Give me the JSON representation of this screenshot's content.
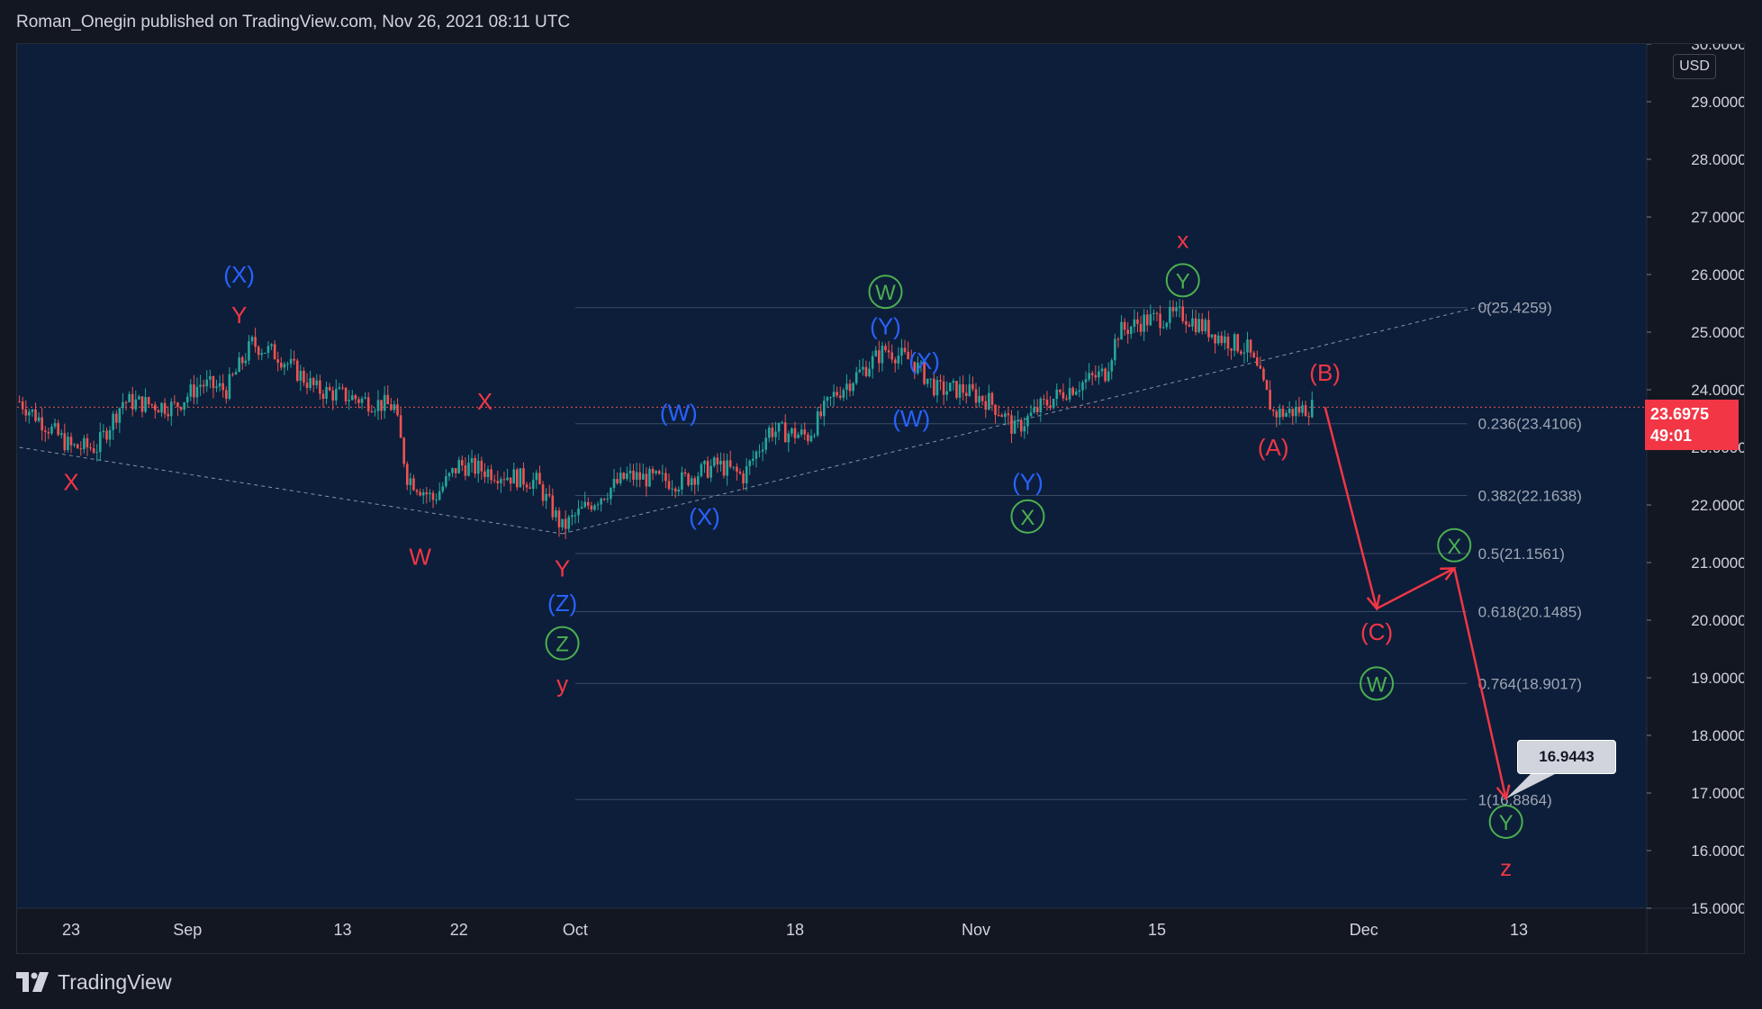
{
  "header": {
    "title": "Roman_Onegin published on TradingView.com, Nov 26, 2021 08:11 UTC"
  },
  "footer": {
    "brand": "TradingView"
  },
  "colors": {
    "background": "#131722",
    "plot_bg": "#0c1e3a",
    "up": "#26a69a",
    "down": "#ef5350",
    "red_label": "#f23645",
    "blue_label": "#2962ff",
    "green_label": "#4caf50",
    "arrow": "#f23645",
    "fib_line": "#3a4a63"
  },
  "chart_data": {
    "type": "candlestick",
    "currency": "USD",
    "last_price": "23.6975",
    "countdown": "49:01",
    "ylim": [
      15.0,
      30.0
    ],
    "y_ticks": [
      "15.0000",
      "16.0000",
      "17.0000",
      "18.0000",
      "19.0000",
      "20.0000",
      "21.0000",
      "22.0000",
      "23.0000",
      "24.0000",
      "25.0000",
      "26.0000",
      "27.0000",
      "28.0000",
      "29.0000",
      "30.0000"
    ],
    "x_ticks": [
      "23",
      "Sep",
      "13",
      "22",
      "Oct",
      "18",
      "Nov",
      "15",
      "Dec",
      "13"
    ],
    "callout_value": "16.9443",
    "fib_levels": [
      {
        "label": "0(25.4259)",
        "value": 25.4259
      },
      {
        "label": "0.236(23.4106)",
        "value": 23.4106
      },
      {
        "label": "0.382(22.1638)",
        "value": 22.1638
      },
      {
        "label": "0.5(21.1561)",
        "value": 21.1561
      },
      {
        "label": "0.618(20.1485)",
        "value": 20.1485
      },
      {
        "label": "0.764(18.9017)",
        "value": 18.9017
      },
      {
        "label": "1(16.8864)",
        "value": 16.8864
      }
    ],
    "path": [
      {
        "d": "Aug 19",
        "p": 23.8
      },
      {
        "d": "Aug 23",
        "p": 23.0
      },
      {
        "d": "Aug 25",
        "p": 23.0
      },
      {
        "d": "Aug 27",
        "p": 23.8
      },
      {
        "d": "Aug 31",
        "p": 23.7
      },
      {
        "d": "Sep 2",
        "p": 24.1
      },
      {
        "d": "Sep 4",
        "p": 24.0
      },
      {
        "d": "Sep 6",
        "p": 24.8
      },
      {
        "d": "Sep 8",
        "p": 24.6
      },
      {
        "d": "Sep 11",
        "p": 24.0
      },
      {
        "d": "Sep 15",
        "p": 23.8
      },
      {
        "d": "Sep 17",
        "p": 23.7
      },
      {
        "d": "Sep 18",
        "p": 22.5
      },
      {
        "d": "Sep 20",
        "p": 22.1
      },
      {
        "d": "Sep 22",
        "p": 22.7
      },
      {
        "d": "Sep 24",
        "p": 22.6
      },
      {
        "d": "Sep 28",
        "p": 22.4
      },
      {
        "d": "Sep 30",
        "p": 21.6
      },
      {
        "d": "Oct 2",
        "p": 22.0
      },
      {
        "d": "Oct 5",
        "p": 22.5
      },
      {
        "d": "Oct 9",
        "p": 22.4
      },
      {
        "d": "Oct 12",
        "p": 22.7
      },
      {
        "d": "Oct 14",
        "p": 22.5
      },
      {
        "d": "Oct 16",
        "p": 23.3
      },
      {
        "d": "Oct 19",
        "p": 23.2
      },
      {
        "d": "Oct 21",
        "p": 23.9
      },
      {
        "d": "Oct 24",
        "p": 24.5
      },
      {
        "d": "Oct 25",
        "p": 24.7
      },
      {
        "d": "Oct 27",
        "p": 24.5
      },
      {
        "d": "Oct 29",
        "p": 24.0
      },
      {
        "d": "Oct 31",
        "p": 24.0
      },
      {
        "d": "Nov 2",
        "p": 23.8
      },
      {
        "d": "Nov 3",
        "p": 23.6
      },
      {
        "d": "Nov 4",
        "p": 23.3
      },
      {
        "d": "Nov 6",
        "p": 23.7
      },
      {
        "d": "Nov 8",
        "p": 24.0
      },
      {
        "d": "Nov 11",
        "p": 24.3
      },
      {
        "d": "Nov 12",
        "p": 25.0
      },
      {
        "d": "Nov 14",
        "p": 25.2
      },
      {
        "d": "Nov 17",
        "p": 25.3
      },
      {
        "d": "Nov 20",
        "p": 24.9
      },
      {
        "d": "Nov 22",
        "p": 24.7
      },
      {
        "d": "Nov 23",
        "p": 24.2
      },
      {
        "d": "Nov 24",
        "p": 23.6
      },
      {
        "d": "Nov 25",
        "p": 23.6
      },
      {
        "d": "Nov 27",
        "p": 23.7
      }
    ],
    "trend_lines": [
      {
        "from": {
          "d": "Aug 19",
          "p": 23.0
        },
        "to": {
          "d": "Sep 30",
          "p": 21.5
        }
      },
      {
        "from": {
          "d": "Sep 30",
          "p": 21.5
        },
        "to": {
          "d": "Dec 11",
          "p": 25.5
        }
      }
    ],
    "projection": [
      {
        "d": "Nov 28",
        "p": 23.7
      },
      {
        "d": "Dec 2",
        "p": 20.2
      },
      {
        "d": "Dec 8",
        "p": 20.9
      },
      {
        "d": "Dec 12",
        "p": 16.9
      }
    ],
    "wave_labels": [
      {
        "text": "(X)",
        "color": "blue",
        "d": "Sep 5",
        "p": 26.0
      },
      {
        "text": "Y",
        "color": "red",
        "d": "Sep 5",
        "p": 25.3
      },
      {
        "text": "X",
        "color": "red",
        "d": "Aug 23",
        "p": 22.4
      },
      {
        "text": "W",
        "color": "red",
        "d": "Sep 19",
        "p": 21.1
      },
      {
        "text": "X",
        "color": "red",
        "d": "Sep 24",
        "p": 23.8
      },
      {
        "text": "Y",
        "color": "red",
        "d": "Sep 30",
        "p": 20.9
      },
      {
        "text": "(Z)",
        "color": "blue",
        "d": "Sep 30",
        "p": 20.3
      },
      {
        "text": "Z",
        "color": "green",
        "circled": true,
        "d": "Sep 30",
        "p": 19.6
      },
      {
        "text": "y",
        "color": "red",
        "d": "Sep 30",
        "p": 18.9
      },
      {
        "text": "(W)",
        "color": "blue",
        "d": "Oct 9",
        "p": 23.6
      },
      {
        "text": "(X)",
        "color": "blue",
        "d": "Oct 11",
        "p": 21.8
      },
      {
        "text": "W",
        "color": "green",
        "circled": true,
        "d": "Oct 25",
        "p": 25.7
      },
      {
        "text": "(Y)",
        "color": "blue",
        "d": "Oct 25",
        "p": 25.1
      },
      {
        "text": "(X)",
        "color": "blue",
        "d": "Oct 28",
        "p": 24.5
      },
      {
        "text": "(W)",
        "color": "blue",
        "d": "Oct 27",
        "p": 23.5
      },
      {
        "text": "(Y)",
        "color": "blue",
        "d": "Nov 5",
        "p": 22.4
      },
      {
        "text": "X",
        "color": "green",
        "circled": true,
        "d": "Nov 5",
        "p": 21.8
      },
      {
        "text": "x",
        "color": "red",
        "d": "Nov 17",
        "p": 26.6
      },
      {
        "text": "Y",
        "color": "green",
        "circled": true,
        "d": "Nov 17",
        "p": 25.9
      },
      {
        "text": "(B)",
        "color": "red",
        "d": "Nov 28",
        "p": 24.3
      },
      {
        "text": "(A)",
        "color": "red",
        "d": "Nov 24",
        "p": 23.0
      },
      {
        "text": "X",
        "color": "green",
        "circled": true,
        "d": "Dec 8",
        "p": 21.3
      },
      {
        "text": "(C)",
        "color": "red",
        "d": "Dec 2",
        "p": 19.8
      },
      {
        "text": "W",
        "color": "green",
        "circled": true,
        "d": "Dec 2",
        "p": 18.9
      },
      {
        "text": "Y",
        "color": "green",
        "circled": true,
        "d": "Dec 12",
        "p": 16.5
      },
      {
        "text": "z",
        "color": "red",
        "d": "Dec 12",
        "p": 15.7
      }
    ]
  }
}
